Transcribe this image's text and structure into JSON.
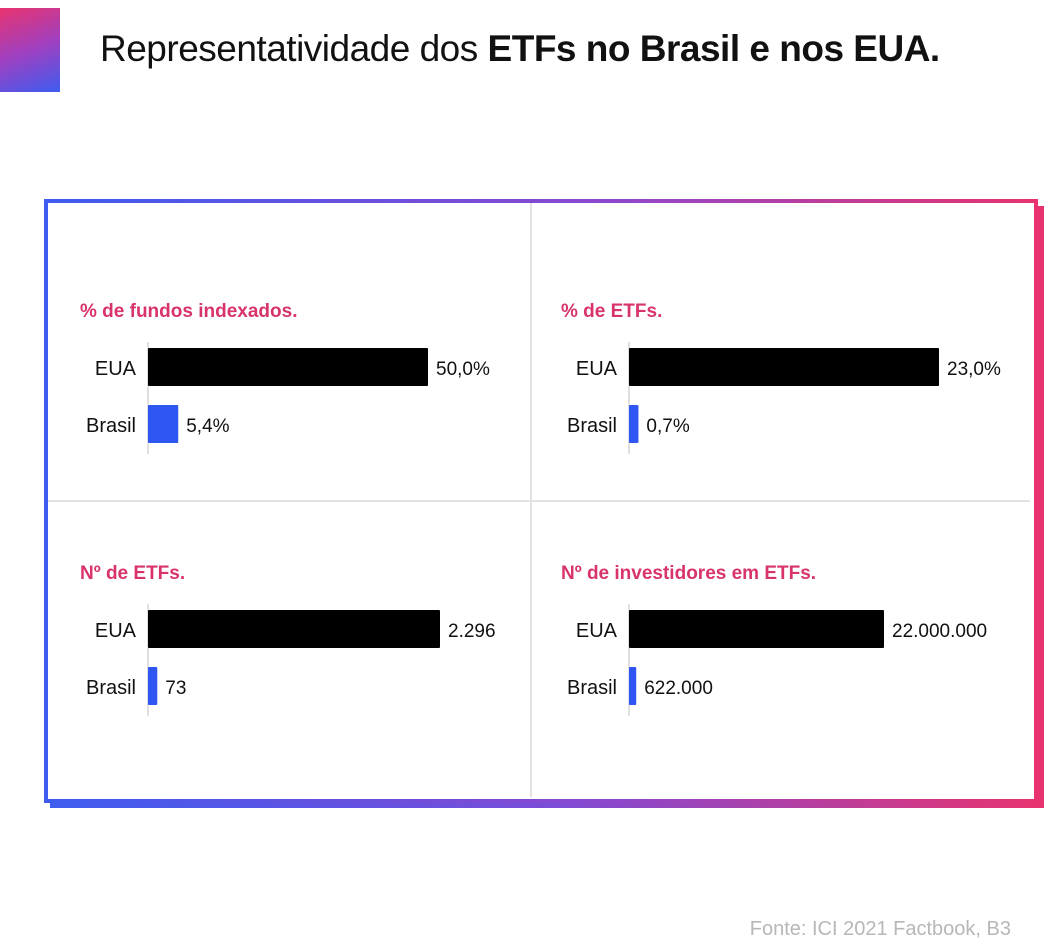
{
  "header": {
    "title_regular": "Representatividade dos ",
    "title_bold": "ETFs no Brasil e nos EUA."
  },
  "colors": {
    "title_accent": "#d8336a",
    "bar_eua": "#000000",
    "bar_brasil": "#2f55f2",
    "gradient_start": "#3d5cf0",
    "gradient_end": "#e8336f"
  },
  "chart_data": [
    {
      "type": "bar",
      "orientation": "horizontal",
      "title": "% de fundos indexados.",
      "categories": [
        "EUA",
        "Brasil"
      ],
      "values": [
        50.0,
        5.4
      ],
      "value_labels": [
        "50,0%",
        "5,4%"
      ]
    },
    {
      "type": "bar",
      "orientation": "horizontal",
      "title": "% de ETFs.",
      "categories": [
        "EUA",
        "Brasil"
      ],
      "values": [
        23.0,
        0.7
      ],
      "value_labels": [
        "23,0%",
        "0,7%"
      ]
    },
    {
      "type": "bar",
      "orientation": "horizontal",
      "title": "Nº de ETFs.",
      "categories": [
        "EUA",
        "Brasil"
      ],
      "values": [
        2296,
        73
      ],
      "value_labels": [
        "2.296",
        "73"
      ]
    },
    {
      "type": "bar",
      "orientation": "horizontal",
      "title": "Nº de investidores em ETFs.",
      "categories": [
        "EUA",
        "Brasil"
      ],
      "values": [
        22000000,
        622000
      ],
      "value_labels": [
        "22.000.000",
        "622.000"
      ]
    }
  ],
  "footer": {
    "source": "Fonte: ICI 2021 Factbook, B3"
  }
}
